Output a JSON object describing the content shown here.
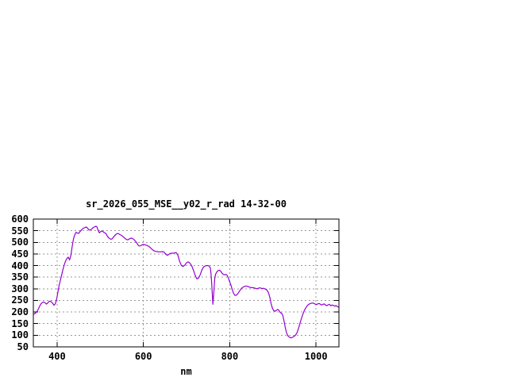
{
  "window": {
    "background": "#ffffff"
  },
  "chart_data": {
    "type": "line",
    "title": "sr_2026_055_MSE__y02_r_rad 14-32-00",
    "xlabel": "nm",
    "ylabel": "",
    "xlim": [
      345,
      1053
    ],
    "ylim": [
      50,
      600
    ],
    "xticks": [
      400,
      600,
      800,
      1000
    ],
    "yticks": [
      50,
      100,
      150,
      200,
      250,
      300,
      350,
      400,
      450,
      500,
      550,
      600
    ],
    "grid": true,
    "legend": false,
    "colors": {
      "line": "#9400d3",
      "grid": "#989898",
      "border": "#000000",
      "text": "#000000"
    },
    "series": [
      {
        "name": "sr_2026_055_MSE__y02_r_rad",
        "color": "#9400d3",
        "points": [
          [
            345,
            188
          ],
          [
            348,
            193
          ],
          [
            351,
            197
          ],
          [
            354,
            204
          ],
          [
            357,
            214
          ],
          [
            360,
            227
          ],
          [
            363,
            236
          ],
          [
            366,
            241
          ],
          [
            369,
            243
          ],
          [
            372,
            240
          ],
          [
            375,
            234
          ],
          [
            378,
            238
          ],
          [
            381,
            245
          ],
          [
            384,
            247
          ],
          [
            387,
            243
          ],
          [
            390,
            237
          ],
          [
            393,
            229
          ],
          [
            396,
            236
          ],
          [
            399,
            256
          ],
          [
            402,
            287
          ],
          [
            405,
            316
          ],
          [
            408,
            340
          ],
          [
            411,
            362
          ],
          [
            414,
            385
          ],
          [
            417,
            406
          ],
          [
            420,
            421
          ],
          [
            423,
            431
          ],
          [
            426,
            436
          ],
          [
            429,
            424
          ],
          [
            432,
            444
          ],
          [
            435,
            481
          ],
          [
            438,
            515
          ],
          [
            441,
            532
          ],
          [
            444,
            543
          ],
          [
            447,
            540
          ],
          [
            450,
            538
          ],
          [
            453,
            546
          ],
          [
            456,
            553
          ],
          [
            459,
            558
          ],
          [
            462,
            561
          ],
          [
            465,
            564
          ],
          [
            468,
            566
          ],
          [
            471,
            560
          ],
          [
            474,
            553
          ],
          [
            477,
            554
          ],
          [
            480,
            557
          ],
          [
            483,
            562
          ],
          [
            486,
            566
          ],
          [
            489,
            569
          ],
          [
            492,
            568
          ],
          [
            495,
            552
          ],
          [
            498,
            541
          ],
          [
            501,
            546
          ],
          [
            504,
            549
          ],
          [
            507,
            545
          ],
          [
            510,
            541
          ],
          [
            513,
            538
          ],
          [
            516,
            528
          ],
          [
            519,
            520
          ],
          [
            522,
            516
          ],
          [
            525,
            513
          ],
          [
            528,
            516
          ],
          [
            531,
            523
          ],
          [
            534,
            530
          ],
          [
            537,
            535
          ],
          [
            540,
            538
          ],
          [
            543,
            536
          ],
          [
            546,
            533
          ],
          [
            549,
            530
          ],
          [
            552,
            526
          ],
          [
            555,
            521
          ],
          [
            558,
            516
          ],
          [
            561,
            512
          ],
          [
            564,
            511
          ],
          [
            567,
            514
          ],
          [
            570,
            517
          ],
          [
            573,
            518
          ],
          [
            576,
            515
          ],
          [
            579,
            510
          ],
          [
            582,
            504
          ],
          [
            585,
            497
          ],
          [
            588,
            487
          ],
          [
            591,
            484
          ],
          [
            594,
            486
          ],
          [
            597,
            489
          ],
          [
            600,
            491
          ],
          [
            604,
            489
          ],
          [
            608,
            487
          ],
          [
            612,
            483
          ],
          [
            616,
            477
          ],
          [
            620,
            470
          ],
          [
            624,
            464
          ],
          [
            628,
            461
          ],
          [
            632,
            460
          ],
          [
            636,
            459
          ],
          [
            640,
            459
          ],
          [
            644,
            460
          ],
          [
            648,
            458
          ],
          [
            652,
            448
          ],
          [
            656,
            444
          ],
          [
            660,
            450
          ],
          [
            664,
            453
          ],
          [
            668,
            453
          ],
          [
            672,
            454
          ],
          [
            676,
            456
          ],
          [
            680,
            444
          ],
          [
            684,
            418
          ],
          [
            688,
            400
          ],
          [
            692,
            396
          ],
          [
            696,
            402
          ],
          [
            700,
            412
          ],
          [
            704,
            416
          ],
          [
            708,
            410
          ],
          [
            712,
            398
          ],
          [
            716,
            380
          ],
          [
            720,
            358
          ],
          [
            724,
            342
          ],
          [
            728,
            347
          ],
          [
            732,
            362
          ],
          [
            736,
            383
          ],
          [
            740,
            395
          ],
          [
            744,
            399
          ],
          [
            748,
            400
          ],
          [
            752,
            398
          ],
          [
            755,
            390
          ],
          [
            757,
            360
          ],
          [
            759,
            300
          ],
          [
            761,
            233
          ],
          [
            763,
            280
          ],
          [
            765,
            340
          ],
          [
            767,
            362
          ],
          [
            770,
            372
          ],
          [
            773,
            378
          ],
          [
            776,
            380
          ],
          [
            779,
            376
          ],
          [
            782,
            368
          ],
          [
            785,
            362
          ],
          [
            788,
            360
          ],
          [
            791,
            362
          ],
          [
            794,
            358
          ],
          [
            797,
            345
          ],
          [
            800,
            330
          ],
          [
            803,
            314
          ],
          [
            806,
            295
          ],
          [
            809,
            280
          ],
          [
            812,
            272
          ],
          [
            815,
            272
          ],
          [
            818,
            277
          ],
          [
            821,
            285
          ],
          [
            824,
            294
          ],
          [
            827,
            301
          ],
          [
            830,
            306
          ],
          [
            834,
            310
          ],
          [
            838,
            312
          ],
          [
            842,
            310
          ],
          [
            846,
            307
          ],
          [
            850,
            305
          ],
          [
            854,
            305
          ],
          [
            858,
            303
          ],
          [
            862,
            300
          ],
          [
            866,
            302
          ],
          [
            870,
            304
          ],
          [
            874,
            301
          ],
          [
            878,
            302
          ],
          [
            882,
            299
          ],
          [
            886,
            295
          ],
          [
            890,
            282
          ],
          [
            893,
            262
          ],
          [
            896,
            235
          ],
          [
            899,
            215
          ],
          [
            902,
            206
          ],
          [
            905,
            203
          ],
          [
            908,
            207
          ],
          [
            911,
            211
          ],
          [
            914,
            207
          ],
          [
            917,
            198
          ],
          [
            920,
            195
          ],
          [
            923,
            185
          ],
          [
            926,
            160
          ],
          [
            929,
            130
          ],
          [
            932,
            108
          ],
          [
            935,
            97
          ],
          [
            938,
            92
          ],
          [
            941,
            89
          ],
          [
            944,
            90
          ],
          [
            947,
            93
          ],
          [
            950,
            96
          ],
          [
            953,
            102
          ],
          [
            956,
            112
          ],
          [
            959,
            128
          ],
          [
            962,
            146
          ],
          [
            965,
            165
          ],
          [
            968,
            183
          ],
          [
            971,
            198
          ],
          [
            974,
            211
          ],
          [
            977,
            220
          ],
          [
            980,
            228
          ],
          [
            983,
            233
          ],
          [
            986,
            236
          ],
          [
            989,
            238
          ],
          [
            992,
            239
          ],
          [
            995,
            237
          ],
          [
            998,
            234
          ],
          [
            1001,
            232
          ],
          [
            1004,
            235
          ],
          [
            1007,
            237
          ],
          [
            1010,
            233
          ],
          [
            1013,
            230
          ],
          [
            1016,
            233
          ],
          [
            1019,
            235
          ],
          [
            1022,
            230
          ],
          [
            1025,
            227
          ],
          [
            1028,
            231
          ],
          [
            1031,
            233
          ],
          [
            1034,
            227
          ],
          [
            1037,
            230
          ],
          [
            1040,
            229
          ],
          [
            1043,
            225
          ],
          [
            1046,
            228
          ],
          [
            1049,
            224
          ],
          [
            1052,
            221
          ]
        ]
      }
    ]
  }
}
